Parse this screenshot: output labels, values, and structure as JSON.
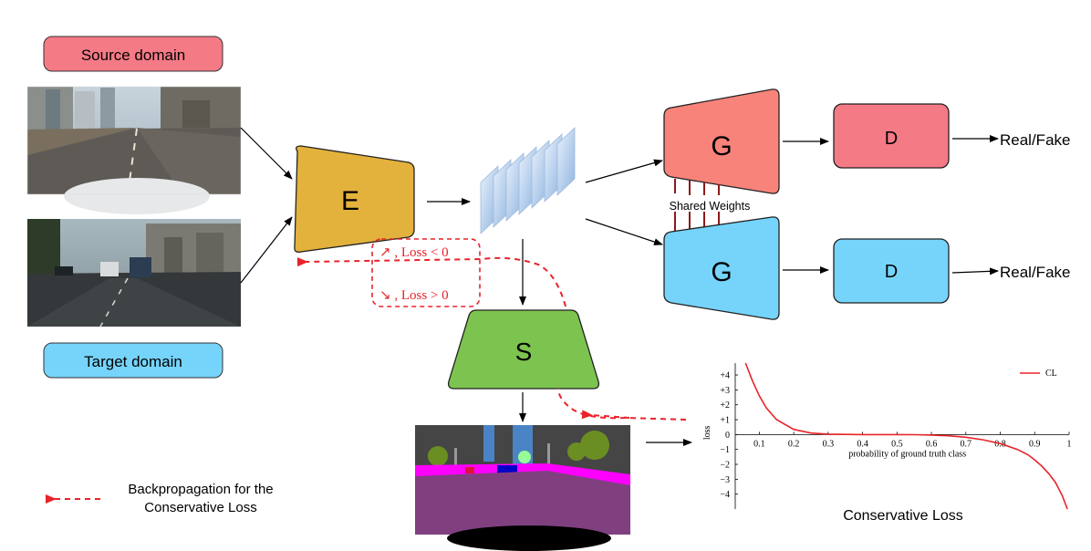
{
  "labels": {
    "source_domain": "Source domain",
    "target_domain": "Target domain",
    "encoder": "E",
    "generator_top": "G",
    "generator_bottom": "G",
    "discriminator_top": "D",
    "discriminator_bottom": "D",
    "segmenter": "S",
    "output_top": "Real/Fake",
    "output_bottom": "Real/Fake",
    "shared_weights": "Shared Weights",
    "loss_neg": "↗ ,  Loss < 0",
    "loss_pos": "↘ ,  Loss > 0",
    "legend_backprop_line1": "Backpropagation for the",
    "legend_backprop_line2": "Conservative Loss",
    "chart_caption": "Conservative Loss"
  },
  "colors": {
    "source": "#f47a86",
    "target": "#76d4fb",
    "encoder": "#e3b23c",
    "generator_top": "#f8837a",
    "discriminator_top": "#f47a86",
    "generator_bottom": "#76d4fb",
    "discriminator_bottom": "#76d4fb",
    "segmenter": "#7cc44f",
    "backprop": "#e8232a"
  },
  "icons": {
    "feature_maps": "stacked-feature-maps-icon",
    "source_image": "synthetic-road-scene-image",
    "target_image": "real-street-scene-image",
    "segmentation_image": "segmentation-map-image"
  },
  "chart_data": {
    "type": "line",
    "title": "",
    "xlabel": "probability of ground truth class",
    "ylabel": "loss",
    "xlim": [
      0.03,
      1.0
    ],
    "ylim": [
      -5.0,
      4.8
    ],
    "x_ticks": [
      0.1,
      0.2,
      0.3,
      0.4,
      0.5,
      0.6,
      0.7,
      0.8,
      0.9,
      1
    ],
    "x_tick_labels": [
      "0.1",
      "0.2",
      "0.3",
      "0.4",
      "0.5",
      "0.6",
      "0.7",
      "0.8",
      "0.9",
      "1"
    ],
    "y_ticks": [
      4,
      3,
      2,
      1,
      0,
      -1,
      -2,
      -3,
      -4
    ],
    "y_tick_labels": [
      "+4",
      "+3",
      "+2",
      "+1",
      "0",
      "−1",
      "−2",
      "−3",
      "−4"
    ],
    "legend": "top-right",
    "grid": false,
    "series": [
      {
        "name": "CL",
        "x": [
          0.06,
          0.08,
          0.1,
          0.12,
          0.15,
          0.2,
          0.25,
          0.3,
          0.35,
          0.4,
          0.45,
          0.5,
          0.55,
          0.6,
          0.65,
          0.7,
          0.75,
          0.8,
          0.85,
          0.88,
          0.9,
          0.92,
          0.94,
          0.96,
          0.98,
          0.995
        ],
        "y": [
          4.8,
          3.6,
          2.6,
          1.8,
          1.0,
          0.35,
          0.1,
          0.03,
          0.01,
          0.0,
          0.0,
          0.0,
          -0.01,
          -0.03,
          -0.08,
          -0.18,
          -0.35,
          -0.6,
          -1.0,
          -1.35,
          -1.7,
          -2.1,
          -2.6,
          -3.2,
          -4.1,
          -5.0
        ]
      }
    ]
  }
}
